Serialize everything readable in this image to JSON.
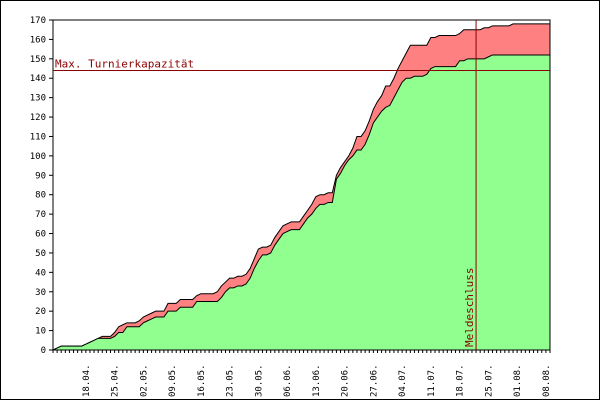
{
  "chart_data": {
    "type": "area",
    "title": "",
    "xlabel": "",
    "ylabel": "",
    "x_tick_labels": [
      "18.04.",
      "25.04.",
      "02.05.",
      "09.05.",
      "16.05.",
      "23.05.",
      "30.05.",
      "06.06.",
      "13.06.",
      "20.06.",
      "27.06.",
      "04.07.",
      "11.07.",
      "18.07.",
      "25.07.",
      "01.08.",
      "08.08."
    ],
    "y_ticks": [
      0,
      10,
      20,
      30,
      40,
      50,
      60,
      70,
      80,
      90,
      100,
      110,
      120,
      130,
      140,
      150,
      160,
      170
    ],
    "ylim": [
      0,
      170
    ],
    "x_days": [
      0,
      1,
      2,
      3,
      4,
      5,
      6,
      7,
      8,
      9,
      10,
      11,
      12,
      13,
      14,
      15,
      16,
      17,
      18,
      19,
      20,
      21,
      22,
      23,
      24,
      25,
      26,
      27,
      28,
      29,
      30,
      31,
      32,
      33,
      34,
      35,
      36,
      37,
      38,
      39,
      40,
      41,
      42,
      43,
      44,
      45,
      46,
      47,
      48,
      49,
      50,
      51,
      52,
      53,
      54,
      55,
      56,
      57,
      58,
      59,
      60,
      61,
      62,
      63,
      64,
      65,
      66,
      67,
      68,
      69,
      70,
      71,
      72,
      73,
      74,
      75,
      76,
      77,
      78,
      79,
      80,
      81,
      82,
      83,
      84,
      85,
      86,
      87,
      88,
      89,
      90,
      91,
      92,
      93,
      94,
      95,
      96,
      97,
      98,
      99,
      100,
      101,
      102,
      103,
      104,
      105,
      106,
      107,
      108,
      109,
      110,
      111,
      112,
      113,
      114,
      115,
      116,
      117,
      118,
      119,
      120,
      121
    ],
    "series": [
      {
        "color": "#90ff90",
        "values": [
          0,
          1,
          2,
          2,
          2,
          2,
          2,
          2,
          3,
          4,
          5,
          6,
          6,
          6,
          6,
          7,
          9,
          9,
          12,
          12,
          12,
          12,
          14,
          15,
          16,
          17,
          17,
          17,
          20,
          20,
          20,
          22,
          22,
          22,
          22,
          25,
          25,
          25,
          25,
          25,
          25,
          27,
          30,
          32,
          32,
          33,
          33,
          34,
          37,
          42,
          46,
          49,
          49,
          50,
          54,
          57,
          60,
          61,
          62,
          62,
          62,
          65,
          68,
          70,
          73,
          75,
          75,
          76,
          76,
          88,
          91,
          95,
          98,
          100,
          103,
          103,
          106,
          111,
          117,
          120,
          123,
          125,
          126,
          130,
          134,
          138,
          140,
          140,
          141,
          141,
          141,
          142,
          145,
          146,
          146,
          146,
          146,
          146,
          146,
          149,
          149,
          150,
          150,
          150,
          150,
          150,
          151,
          152,
          152,
          152,
          152,
          152,
          152,
          152,
          152,
          152,
          152,
          152,
          152,
          152,
          152,
          152
        ]
      },
      {
        "color": "#ff8080",
        "values": [
          0,
          1,
          2,
          2,
          2,
          2,
          2,
          2,
          3,
          4,
          5,
          6,
          7,
          7,
          7,
          9,
          12,
          13,
          14,
          14,
          14,
          15,
          17,
          18,
          19,
          20,
          20,
          20,
          24,
          24,
          24,
          26,
          26,
          26,
          26,
          28,
          29,
          29,
          29,
          29,
          30,
          33,
          35,
          37,
          37,
          38,
          38,
          39,
          42,
          47,
          52,
          53,
          53,
          54,
          58,
          61,
          64,
          65,
          66,
          66,
          66,
          69,
          72,
          75,
          79,
          80,
          80,
          81,
          81,
          90,
          94,
          97,
          100,
          104,
          110,
          110,
          113,
          118,
          124,
          128,
          131,
          136,
          136,
          140,
          145,
          149,
          153,
          157,
          157,
          157,
          157,
          157,
          161,
          161,
          162,
          162,
          162,
          162,
          162,
          163,
          165,
          165,
          165,
          165,
          165,
          166,
          166,
          167,
          167,
          167,
          167,
          167,
          168,
          168,
          168,
          168,
          168,
          168,
          168,
          168,
          168,
          168
        ]
      }
    ],
    "annotations": {
      "capacity_label": "Max. Turnierkapazität",
      "capacity_value": 144,
      "deadline_label": "Meldeschluss",
      "deadline_day": 103
    },
    "colors": {
      "line": "#000000",
      "annotation": "#8b0000"
    }
  }
}
